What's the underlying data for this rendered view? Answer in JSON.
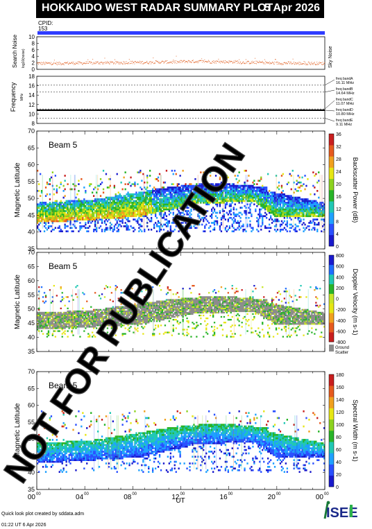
{
  "header": {
    "title": "HOKKAIDO WEST RADAR SUMMARY PLOT",
    "date": "5 Apr 2026",
    "cpid_label": "CPID:",
    "cpid_value": "153"
  },
  "watermark": "NOT FOR PUBLICATION",
  "colors": {
    "title_bg": "#000000",
    "cpid_bar": "#2f3cff",
    "noise": "#e05a1a",
    "freq_line": "#000000",
    "ground_scatter": "#8c8c8c"
  },
  "chart_data": [
    {
      "type": "scatter",
      "id": "noise",
      "ylabel": "Search Noise",
      "ylabel_sub": "log10(noise)",
      "legend": "Sky Noise",
      "ylim": [
        0,
        10
      ],
      "yticks": [
        0,
        2,
        4,
        6,
        8,
        10
      ],
      "series": [
        {
          "name": "Sky Noise",
          "values": [
            1.9,
            2.0,
            2.1,
            2.2,
            2.3,
            2.5,
            2.4,
            2.2,
            2.0,
            1.9
          ]
        }
      ]
    },
    {
      "type": "line",
      "id": "frequency",
      "ylabel": "Frequency",
      "yunit": "MHz",
      "ylim": [
        8,
        18
      ],
      "yticks": [
        8,
        10,
        12,
        14,
        16,
        18
      ],
      "bands": [
        {
          "label": "freq bandA",
          "value": "16.11 MHz",
          "freq": 16.11
        },
        {
          "label": "freq bandB",
          "value": "14.64 MHz",
          "freq": 14.64
        },
        {
          "label": "freq bandC",
          "value": "11.07 MHz",
          "freq": 11.07
        },
        {
          "label": "freq bandD",
          "value": "10.80 MHz",
          "freq": 10.8
        },
        {
          "label": "freq bandE",
          "value": "9.11 MHz",
          "freq": 9.11
        }
      ],
      "operating_freq": 10.8
    },
    {
      "type": "heatmap",
      "id": "power",
      "annotation": "Beam  5",
      "ylabel": "Magnetic Latitude",
      "ylim": [
        35,
        70
      ],
      "yticks": [
        35,
        40,
        45,
        50,
        55,
        60,
        65,
        70
      ],
      "colorbar_label": "Backscatter Power (dB)",
      "colorbar_ticks": [
        "0",
        "4",
        "8",
        "12",
        "16",
        "20",
        "24",
        "28",
        "32",
        "36"
      ],
      "colorscale": [
        "#1a1acc",
        "#2a50ff",
        "#1fa0ff",
        "#21c8b4",
        "#28b428",
        "#8cd21e",
        "#e6e614",
        "#f0a01e",
        "#e65a1e",
        "#c81e1e"
      ]
    },
    {
      "type": "heatmap",
      "id": "velocity",
      "annotation": "Beam  5",
      "ylabel": "Magnetic Latitude",
      "ylim": [
        35,
        70
      ],
      "yticks": [
        35,
        40,
        45,
        50,
        55,
        60,
        65,
        70
      ],
      "colorbar_label": "Doppler Velocity (m s-1)",
      "colorbar_ticks": [
        "-800",
        "-600",
        "-400",
        "-200",
        "0",
        "200",
        "400",
        "600",
        "800"
      ],
      "colorscale": [
        "#c81e1e",
        "#e65a1e",
        "#f0a01e",
        "#e6e614",
        "#c8e628",
        "#28b428",
        "#21c8b4",
        "#1f6eff",
        "#1a1acc"
      ],
      "ground_scatter_label": [
        "Ground",
        "Scatter"
      ]
    },
    {
      "type": "heatmap",
      "id": "width",
      "annotation": "Beam  5",
      "ylabel": "Magnetic Latitude",
      "ylim": [
        35,
        70
      ],
      "yticks": [
        35,
        40,
        45,
        50,
        55,
        60,
        65,
        70
      ],
      "xlabel": "UT",
      "colorbar_label": "Spectral Width (m s-1)",
      "colorbar_ticks": [
        "0",
        "20",
        "40",
        "60",
        "80",
        "100",
        "120",
        "140",
        "160",
        "180"
      ],
      "colorscale": [
        "#1a1acc",
        "#2a50ff",
        "#1fa0ff",
        "#21c8b4",
        "#28b428",
        "#8cd21e",
        "#e6e614",
        "#f0a01e",
        "#e65a1e",
        "#c81e1e"
      ]
    }
  ],
  "xaxis": {
    "ticks": [
      "00",
      "04",
      "08",
      "12",
      "16",
      "20",
      "00"
    ],
    "tick_sup": "00",
    "label": "UT"
  },
  "footer": {
    "credit": "Quick look plot created by sddata.adm",
    "timestamp": "01:22 UT  6 Apr 2026",
    "logo": "ISEE"
  }
}
